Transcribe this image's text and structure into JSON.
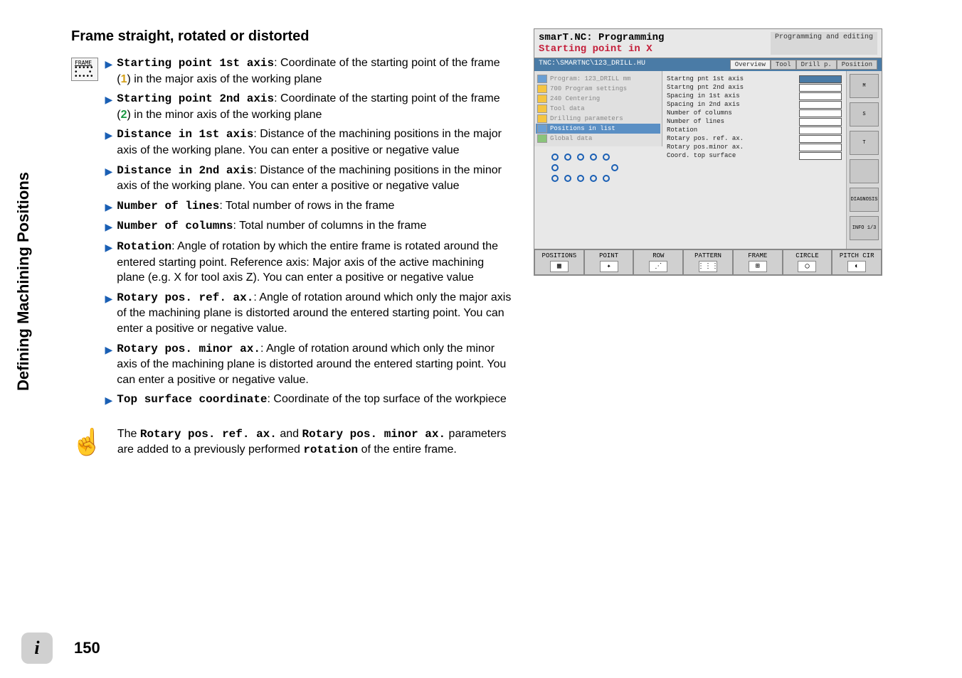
{
  "sidebar_title": "Defining Machining Positions",
  "section_title": "Frame straight, rotated or distorted",
  "frame_icon_label": "FRAME",
  "params": [
    {
      "name": "Starting point 1st axis",
      "desc_before": ": Coordinate of the starting point of the frame (",
      "ref": "1",
      "ref_class": "ref-num-1",
      "desc_after": ") in the major axis of the working plane"
    },
    {
      "name": "Starting point 2nd axis",
      "desc_before": ": Coordinate of the starting point of the frame (",
      "ref": "2",
      "ref_class": "ref-num-2",
      "desc_after": ") in the minor axis of the working plane"
    },
    {
      "name": "Distance in 1st axis",
      "desc_before": ": Distance of the machining positions in the major axis of the working plane. You can enter a positive or negative value",
      "ref": "",
      "ref_class": "",
      "desc_after": ""
    },
    {
      "name": "Distance in 2nd axis",
      "desc_before": ": Distance of the machining positions in the minor axis of the working plane. You can enter a positive or negative value",
      "ref": "",
      "ref_class": "",
      "desc_after": ""
    },
    {
      "name": "Number of lines",
      "desc_before": ": Total number of rows in the frame",
      "ref": "",
      "ref_class": "",
      "desc_after": ""
    },
    {
      "name": "Number of columns",
      "desc_before": ": Total number of columns in the frame",
      "ref": "",
      "ref_class": "",
      "desc_after": ""
    },
    {
      "name": "Rotation",
      "desc_before": ": Angle of rotation by which the entire frame is rotated around the entered starting point. Reference axis: Major axis of the active machining plane (e.g. X for tool axis Z). You can enter a positive or negative value",
      "ref": "",
      "ref_class": "",
      "desc_after": ""
    },
    {
      "name": "Rotary pos. ref. ax.",
      "desc_before": ": Angle of rotation around which only the major axis of the machining plane is distorted around the entered starting point. You can enter a positive or negative value.",
      "ref": "",
      "ref_class": "",
      "desc_after": ""
    },
    {
      "name": "Rotary pos. minor ax.",
      "desc_before": ": Angle of rotation around which only the minor axis of the machining plane is distorted around the entered starting point. You can enter a positive or negative value.",
      "ref": "",
      "ref_class": "",
      "desc_after": ""
    },
    {
      "name": "Top surface coordinate",
      "desc_before": ": Coordinate of the top surface of the workpiece",
      "ref": "",
      "ref_class": "",
      "desc_after": ""
    }
  ],
  "note": {
    "part1": "The ",
    "name1": "Rotary pos. ref. ax.",
    "mid": " and ",
    "name2": "Rotary pos. minor ax.",
    "part2": " parameters are added to a previously performed ",
    "name3": "rotation",
    "part3": " of the entire frame."
  },
  "page_number": "150",
  "screenshot": {
    "title_main": "smarT.NC: Programming",
    "title_sub": "Starting point in X",
    "mode": "Programming and editing",
    "path": "TNC:\\SMARTNC\\123_DRILL.HU",
    "tabs": [
      "Overview",
      "Tool",
      "Drill p.",
      "Position"
    ],
    "tree": [
      {
        "label": "Program: 123_DRILL mm",
        "hl": false,
        "icon": "blue"
      },
      {
        "label": "700 Program settings",
        "hl": false,
        "icon": ""
      },
      {
        "label": "240 Centering",
        "hl": false,
        "icon": ""
      },
      {
        "label": "Tool data",
        "hl": false,
        "icon": ""
      },
      {
        "label": "Drilling parameters",
        "hl": false,
        "icon": ""
      },
      {
        "label": "Positions in list",
        "hl": true,
        "icon": "blue"
      },
      {
        "label": "Global data",
        "hl": false,
        "icon": "green"
      }
    ],
    "form_labels": [
      "Startng pnt 1st axis",
      "Startng pnt 2nd axis",
      "Spacing in 1st axis",
      "Spacing in 2nd axis",
      "Number of columns",
      "Number of lines",
      "Rotation",
      "Rotary pos. ref. ax.",
      "Rotary pos.minor ax.",
      "Coord. top surface"
    ],
    "side_buttons": [
      "M",
      "S",
      "T",
      "",
      "DIAGNOSIS",
      "INFO 1/3"
    ],
    "bottom_buttons": [
      "POSITIONS",
      "POINT",
      "ROW",
      "PATTERN",
      "FRAME",
      "CIRCLE",
      "PITCH CIR"
    ],
    "bottom_icons": [
      "▦",
      "✦",
      "⋰",
      "⋮⋮⋮",
      "⊞",
      "◯",
      "◐"
    ]
  }
}
